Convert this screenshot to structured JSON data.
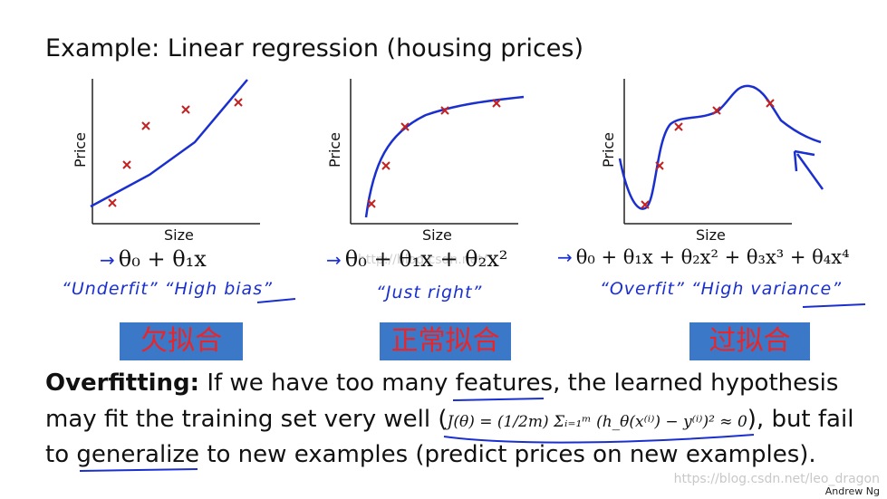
{
  "title": "Example: Linear regression (housing prices)",
  "panels": [
    {
      "ylabel": "Price",
      "xlabel": "Size",
      "formula": "θ₀ + θ₁x",
      "notes": "“Underfit”   “High bias”",
      "zh": "欠拟合"
    },
    {
      "ylabel": "Price",
      "xlabel": "Size",
      "formula": "θ₀ + θ₁x + θ₂x²",
      "notes": "“Just right”",
      "zh": "正常拟合"
    },
    {
      "ylabel": "Price",
      "xlabel": "Size",
      "formula": "θ₀ + θ₁x + θ₂x² + θ₃x³ + θ₄x⁴",
      "notes": "“Overfit”   “High variance”",
      "zh": "过拟合"
    }
  ],
  "arrow": "→",
  "para": {
    "bold": "Overfitting:",
    "line1": " If we have too many features, the learned hypothesis",
    "line2_a": "may fit the training set very well (",
    "cost": "J(θ) = (1/2m) Σᵢ₌₁ᵐ (h_θ(x⁽ⁱ⁾) − y⁽ⁱ⁾)² ≈ 0",
    "line2_b": "), but fail",
    "line3": "to generalize to new examples (predict prices on new examples)."
  },
  "watermark_mid": "http://blog.csdn.net/",
  "watermark": "https://blog.csdn.net/leo_dragon",
  "author": "Andrew Ng"
}
